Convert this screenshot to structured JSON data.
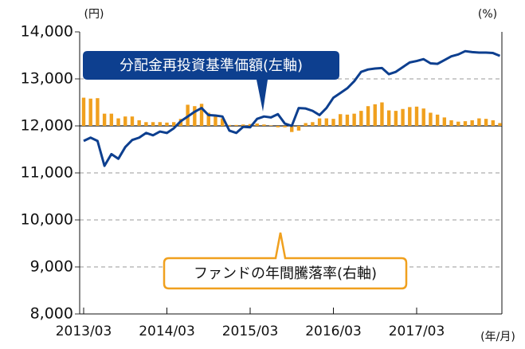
{
  "chart_data": {
    "type": "bar-line",
    "y_unit": "(円)",
    "y2_unit": "(%)",
    "x_unit": "(年/月)",
    "categories": [
      "2013/03",
      null,
      null,
      null,
      null,
      null,
      null,
      null,
      null,
      null,
      null,
      null,
      "2014/03",
      null,
      null,
      null,
      null,
      null,
      null,
      null,
      null,
      null,
      null,
      null,
      "2015/03",
      null,
      null,
      null,
      null,
      null,
      null,
      null,
      null,
      null,
      null,
      null,
      "2016/03",
      null,
      null,
      null,
      null,
      null,
      null,
      null,
      null,
      null,
      null,
      null,
      "2017/03",
      null,
      null,
      null,
      null,
      null,
      null,
      null,
      null,
      null,
      null,
      null,
      null
    ],
    "series": [
      {
        "name": "分配金再投資基準価額(左軸)",
        "type": "line",
        "color": "#0d3f8f",
        "values": [
          11680,
          11750,
          11680,
          11150,
          11400,
          11300,
          11550,
          11700,
          11750,
          11850,
          11800,
          11880,
          11850,
          11950,
          12100,
          12200,
          12300,
          12380,
          12230,
          12220,
          12200,
          11900,
          11850,
          11980,
          11970,
          12150,
          12200,
          12180,
          12250,
          12050,
          12000,
          12380,
          12370,
          12320,
          12230,
          12380,
          12600,
          12700,
          12800,
          12950,
          13150,
          13200,
          13220,
          13230,
          13100,
          13150,
          13250,
          13350,
          13380,
          13420,
          13330,
          13320,
          13400,
          13480,
          13520,
          13590,
          13570,
          13560,
          13560,
          13550,
          13490
        ]
      },
      {
        "name": "ファンドの年間騰落率(右軸)",
        "type": "bar",
        "axis": "y2",
        "color": "#f0a01e",
        "values": [
          6.0,
          5.8,
          5.9,
          2.6,
          2.6,
          1.6,
          2.0,
          2.0,
          1.2,
          0.8,
          0.8,
          0.8,
          0.7,
          0.8,
          1.5,
          4.5,
          4.2,
          4.7,
          2.8,
          2.2,
          1.6,
          0.2,
          0.2,
          0.3,
          0.4,
          0.5,
          0.3,
          0.1,
          -0.3,
          -0.3,
          -1.3,
          -1.0,
          0.6,
          0.8,
          1.6,
          1.6,
          1.5,
          2.5,
          2.4,
          2.6,
          3.2,
          4.2,
          4.6,
          5.0,
          3.3,
          3.2,
          3.6,
          4.0,
          4.1,
          3.7,
          2.8,
          2.4,
          1.8,
          1.2,
          0.9,
          1.0,
          1.2,
          1.6,
          1.5,
          1.2,
          0.6
        ]
      }
    ],
    "ylim": [
      8000,
      14000
    ],
    "yticks": [
      {
        "value": 8000,
        "label": "8,000"
      },
      {
        "value": 9000,
        "label": "9,000"
      },
      {
        "value": 10000,
        "label": "10,000"
      },
      {
        "value": 11000,
        "label": "11,000"
      },
      {
        "value": 12000,
        "label": "12,000"
      },
      {
        "value": 13000,
        "label": "13,000"
      },
      {
        "value": 14000,
        "label": "14,000"
      }
    ],
    "y2lim": [
      -40,
      20
    ],
    "grid": true
  }
}
